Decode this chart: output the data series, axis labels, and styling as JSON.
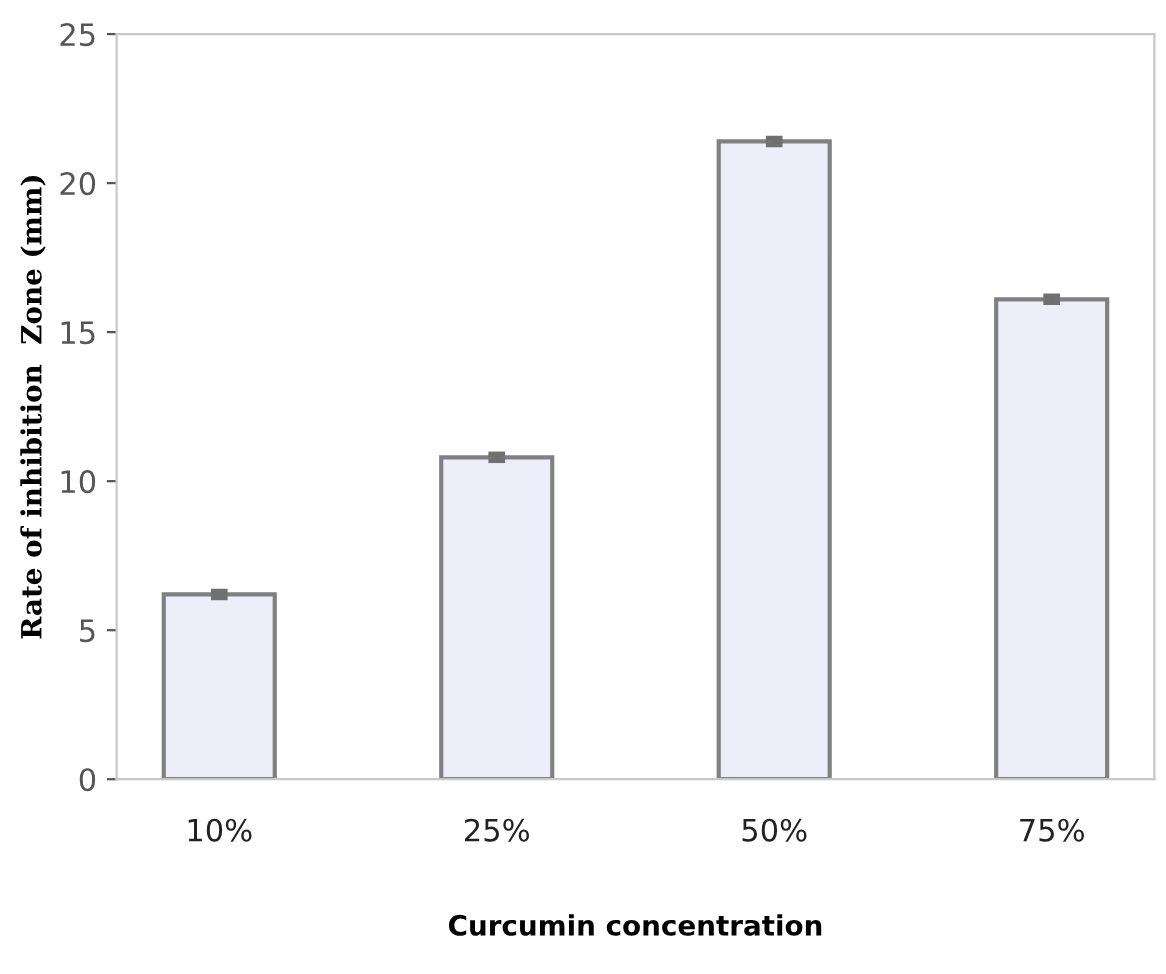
{
  "chart_data": {
    "type": "bar",
    "xlabel": "Curcumin concentration",
    "ylabel": "Rate of inhibition  Zone (mm)",
    "categories": [
      "10%",
      "25%",
      "50%",
      "75%"
    ],
    "values": [
      6.2,
      10.8,
      21.4,
      16.1
    ],
    "errors": [
      0.1,
      0.1,
      0.1,
      0.1
    ],
    "color": "#eeeefa",
    "ylim": [
      0,
      25
    ],
    "yticks": [
      0,
      5,
      10,
      15,
      20,
      25
    ],
    "grid": false
  }
}
